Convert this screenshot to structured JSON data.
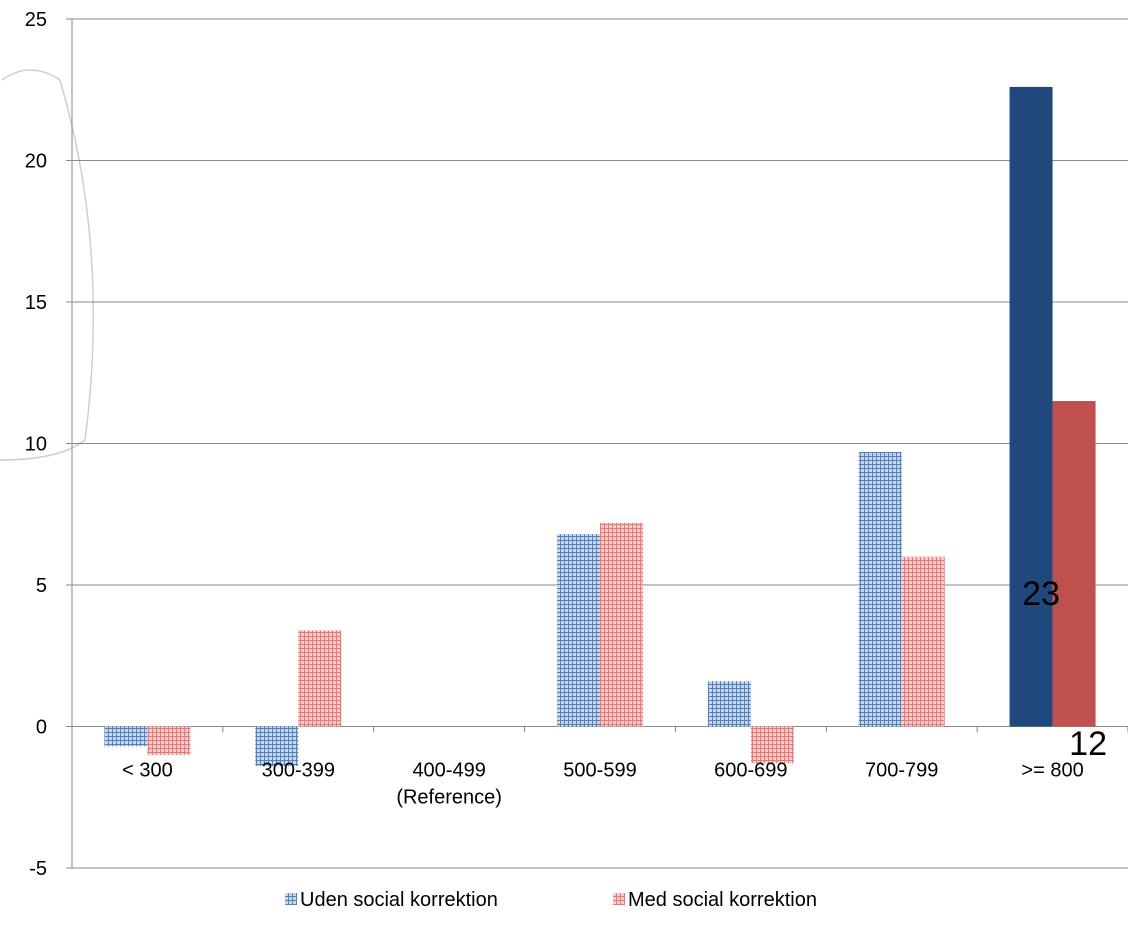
{
  "chart_data": {
    "type": "bar",
    "title": "",
    "xlabel": "",
    "ylabel": "",
    "ylim": [
      -5,
      25
    ],
    "yticks": [
      -5,
      0,
      5,
      10,
      15,
      20,
      25
    ],
    "grid": true,
    "legend_position": "bottom",
    "categories": [
      "< 300",
      "300-399",
      "400-499",
      "500-599",
      "600-699",
      "700-799",
      ">= 800"
    ],
    "category_sublabels": [
      "",
      "",
      "(Reference)",
      "",
      "",
      "",
      ""
    ],
    "series": [
      {
        "name": "Uden social korrektion",
        "values": [
          -0.7,
          -1.4,
          0,
          6.8,
          1.6,
          9.7,
          22.6
        ],
        "color": "#1F497D",
        "pattern_color": "#8EA9CF"
      },
      {
        "name": "Med social korrektion",
        "values": [
          -1.0,
          3.4,
          0,
          7.2,
          -1.3,
          6.0,
          11.5
        ],
        "color": "#C0504D",
        "pattern_color": "#E9A3A2"
      }
    ],
    "data_labels": [
      {
        "series": 0,
        "category": 6,
        "text": "23"
      },
      {
        "series": 1,
        "category": 6,
        "text": "12"
      }
    ]
  }
}
